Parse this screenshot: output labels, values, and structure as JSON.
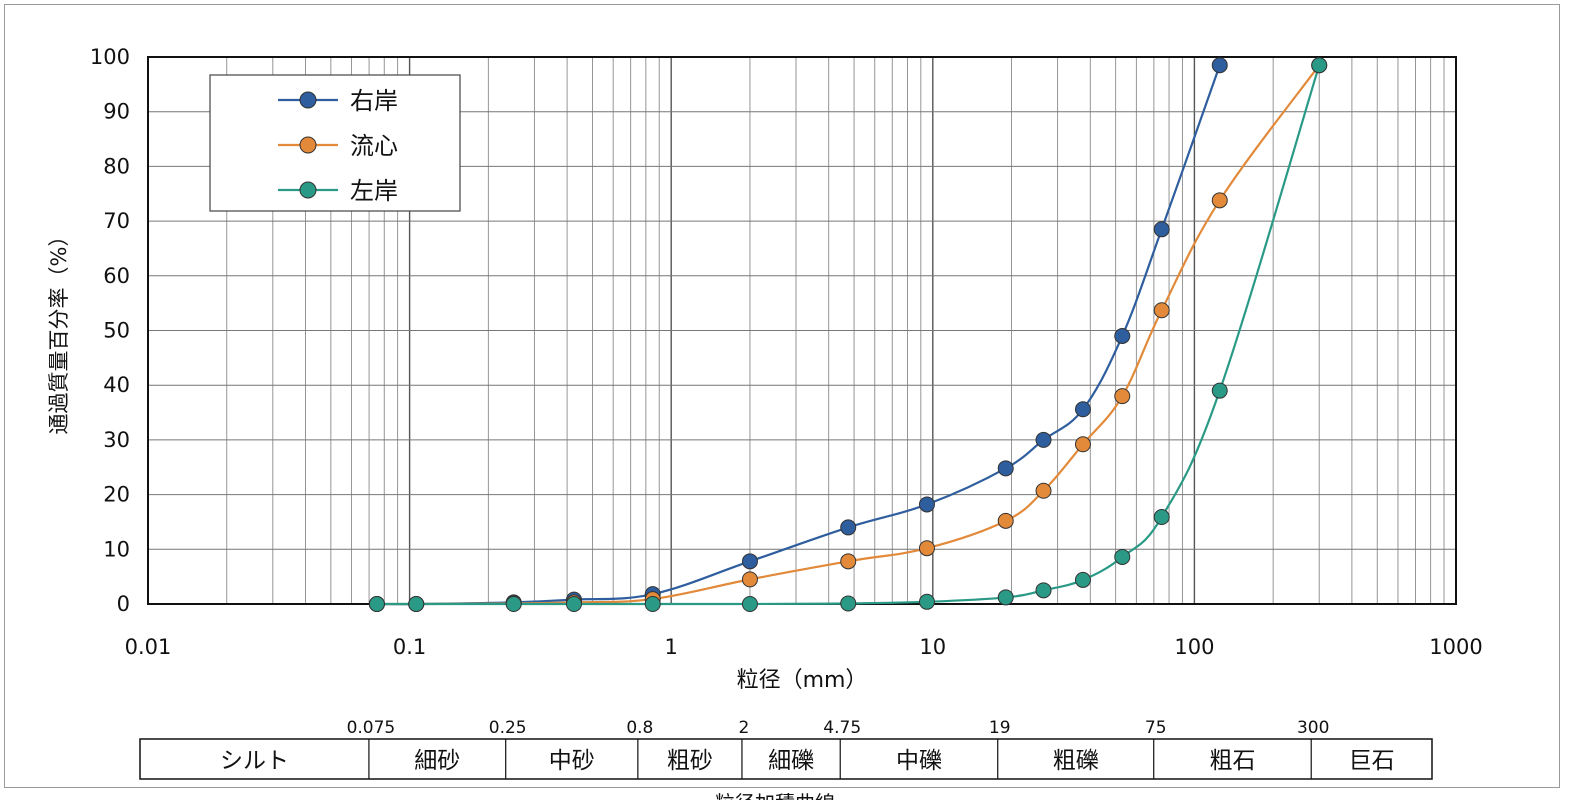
{
  "chart_data": {
    "type": "line",
    "title": "",
    "xlabel": "粒径（mm）",
    "ylabel": "通過質量百分率（%）",
    "x_scale": "log",
    "xlim": [
      0.01,
      1000
    ],
    "ylim": [
      0,
      100
    ],
    "grid": true,
    "legend_position": "top-left",
    "x_ticks": [
      "0.01",
      "0.1",
      "1",
      "10",
      "100",
      "1000"
    ],
    "y_ticks": [
      "0",
      "10",
      "20",
      "30",
      "40",
      "50",
      "60",
      "70",
      "80",
      "90",
      "100"
    ],
    "series": [
      {
        "name": "右岸",
        "color": "#2f5e9e",
        "x": [
          0.075,
          0.106,
          0.25,
          0.425,
          0.85,
          2,
          4.75,
          9.5,
          19,
          26.5,
          37.5,
          53,
          75,
          125
        ],
        "y": [
          0,
          0,
          0.3,
          0.8,
          1.8,
          7.8,
          14,
          18.2,
          24.8,
          30,
          35.6,
          49,
          68.5,
          98.5
        ]
      },
      {
        "name": "流心",
        "color": "#e28a3a",
        "x": [
          0.075,
          0.106,
          0.25,
          0.425,
          0.85,
          2,
          4.75,
          9.5,
          19,
          26.5,
          37.5,
          53,
          75,
          125,
          300
        ],
        "y": [
          0,
          0,
          0.1,
          0.3,
          0.9,
          4.5,
          7.8,
          10.2,
          15.2,
          20.7,
          29.2,
          38,
          53.7,
          73.8,
          98.5
        ]
      },
      {
        "name": "左岸",
        "color": "#2a9a86",
        "x": [
          0.075,
          0.106,
          0.25,
          0.425,
          0.85,
          2,
          4.75,
          9.5,
          19,
          26.5,
          37.5,
          53,
          75,
          125,
          300
        ],
        "y": [
          0,
          0,
          0,
          0,
          0,
          0,
          0.1,
          0.4,
          1.2,
          2.5,
          4.4,
          8.6,
          15.9,
          39,
          98.5
        ]
      }
    ]
  },
  "classification": {
    "boundaries": [
      {
        "label": "0.075",
        "value": 0.075
      },
      {
        "label": "0.25",
        "value": 0.25
      },
      {
        "label": "0.8",
        "value": 0.8
      },
      {
        "label": "2",
        "value": 2
      },
      {
        "label": "4.75",
        "value": 4.75
      },
      {
        "label": "19",
        "value": 19
      },
      {
        "label": "75",
        "value": 75
      },
      {
        "label": "300",
        "value": 300
      }
    ],
    "classes": [
      "シルト",
      "細砂",
      "中砂",
      "粗砂",
      "細礫",
      "中礫",
      "粗礫",
      "粗石",
      "巨石"
    ]
  },
  "footer_title": "粒径加積曲線"
}
